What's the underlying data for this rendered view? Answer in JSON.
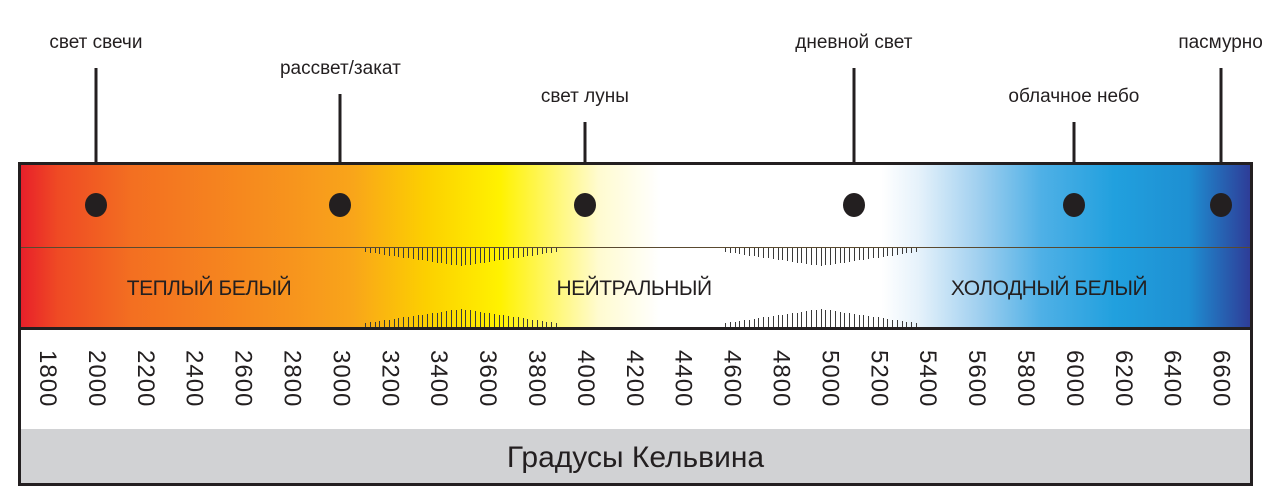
{
  "callouts": [
    {
      "label": "свет свечи",
      "kelvin": 2000
    },
    {
      "label": "рассвет/закат",
      "kelvin": 3000
    },
    {
      "label": "свет луны",
      "kelvin": 4000
    },
    {
      "label": "дневной свет",
      "kelvin": 5100
    },
    {
      "label": "облачное небо",
      "kelvin": 6000
    },
    {
      "label": "пасмурно",
      "kelvin": 6600
    }
  ],
  "zones": [
    "ТЕПЛЫЙ БЕЛЫЙ",
    "НЕЙТРАЛЬНЫЙ",
    "ХОЛОДНЫЙ БЕЛЫЙ"
  ],
  "scale": [
    "1800",
    "2000",
    "2200",
    "2400",
    "2600",
    "2800",
    "3000",
    "3200",
    "3400",
    "3600",
    "3800",
    "4000",
    "4200",
    "4400",
    "4600",
    "4800",
    "5000",
    "5200",
    "5400",
    "5600",
    "5800",
    "6000",
    "6200",
    "6400",
    "6600"
  ],
  "footer": "Градусы Кельвина",
  "colors": {
    "warm": "#e8202a",
    "neutral": "#fff200",
    "cool": "#21a0de",
    "deep": "#2e3d98"
  }
}
